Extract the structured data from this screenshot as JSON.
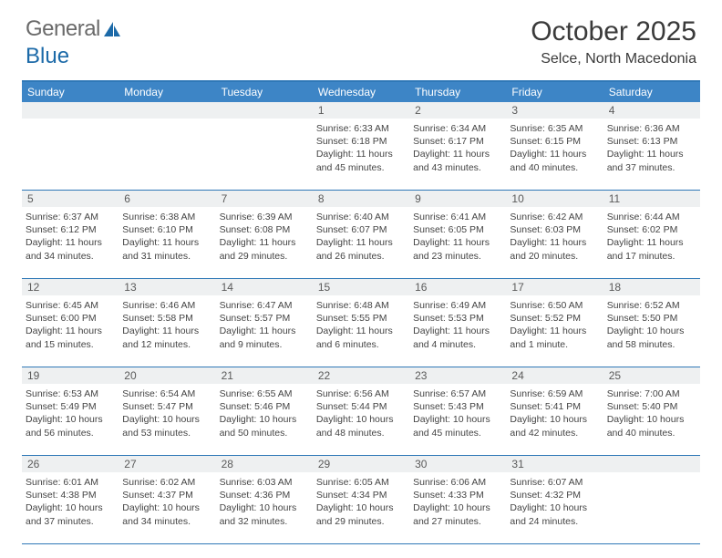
{
  "logo": {
    "text_general": "General",
    "text_blue": "Blue"
  },
  "header": {
    "title": "October 2025",
    "location": "Selce, North Macedonia"
  },
  "colors": {
    "header_bg": "#3d85c6",
    "border": "#2f78b7",
    "daynum_bg": "#eef0f1",
    "logo_gray": "#6a6a6a",
    "logo_blue": "#1c6aa8"
  },
  "day_headers": [
    "Sunday",
    "Monday",
    "Tuesday",
    "Wednesday",
    "Thursday",
    "Friday",
    "Saturday"
  ],
  "weeks": [
    [
      {
        "num": "",
        "sunrise": "",
        "sunset": "",
        "daylight": ""
      },
      {
        "num": "",
        "sunrise": "",
        "sunset": "",
        "daylight": ""
      },
      {
        "num": "",
        "sunrise": "",
        "sunset": "",
        "daylight": ""
      },
      {
        "num": "1",
        "sunrise": "Sunrise: 6:33 AM",
        "sunset": "Sunset: 6:18 PM",
        "daylight": "Daylight: 11 hours and 45 minutes."
      },
      {
        "num": "2",
        "sunrise": "Sunrise: 6:34 AM",
        "sunset": "Sunset: 6:17 PM",
        "daylight": "Daylight: 11 hours and 43 minutes."
      },
      {
        "num": "3",
        "sunrise": "Sunrise: 6:35 AM",
        "sunset": "Sunset: 6:15 PM",
        "daylight": "Daylight: 11 hours and 40 minutes."
      },
      {
        "num": "4",
        "sunrise": "Sunrise: 6:36 AM",
        "sunset": "Sunset: 6:13 PM",
        "daylight": "Daylight: 11 hours and 37 minutes."
      }
    ],
    [
      {
        "num": "5",
        "sunrise": "Sunrise: 6:37 AM",
        "sunset": "Sunset: 6:12 PM",
        "daylight": "Daylight: 11 hours and 34 minutes."
      },
      {
        "num": "6",
        "sunrise": "Sunrise: 6:38 AM",
        "sunset": "Sunset: 6:10 PM",
        "daylight": "Daylight: 11 hours and 31 minutes."
      },
      {
        "num": "7",
        "sunrise": "Sunrise: 6:39 AM",
        "sunset": "Sunset: 6:08 PM",
        "daylight": "Daylight: 11 hours and 29 minutes."
      },
      {
        "num": "8",
        "sunrise": "Sunrise: 6:40 AM",
        "sunset": "Sunset: 6:07 PM",
        "daylight": "Daylight: 11 hours and 26 minutes."
      },
      {
        "num": "9",
        "sunrise": "Sunrise: 6:41 AM",
        "sunset": "Sunset: 6:05 PM",
        "daylight": "Daylight: 11 hours and 23 minutes."
      },
      {
        "num": "10",
        "sunrise": "Sunrise: 6:42 AM",
        "sunset": "Sunset: 6:03 PM",
        "daylight": "Daylight: 11 hours and 20 minutes."
      },
      {
        "num": "11",
        "sunrise": "Sunrise: 6:44 AM",
        "sunset": "Sunset: 6:02 PM",
        "daylight": "Daylight: 11 hours and 17 minutes."
      }
    ],
    [
      {
        "num": "12",
        "sunrise": "Sunrise: 6:45 AM",
        "sunset": "Sunset: 6:00 PM",
        "daylight": "Daylight: 11 hours and 15 minutes."
      },
      {
        "num": "13",
        "sunrise": "Sunrise: 6:46 AM",
        "sunset": "Sunset: 5:58 PM",
        "daylight": "Daylight: 11 hours and 12 minutes."
      },
      {
        "num": "14",
        "sunrise": "Sunrise: 6:47 AM",
        "sunset": "Sunset: 5:57 PM",
        "daylight": "Daylight: 11 hours and 9 minutes."
      },
      {
        "num": "15",
        "sunrise": "Sunrise: 6:48 AM",
        "sunset": "Sunset: 5:55 PM",
        "daylight": "Daylight: 11 hours and 6 minutes."
      },
      {
        "num": "16",
        "sunrise": "Sunrise: 6:49 AM",
        "sunset": "Sunset: 5:53 PM",
        "daylight": "Daylight: 11 hours and 4 minutes."
      },
      {
        "num": "17",
        "sunrise": "Sunrise: 6:50 AM",
        "sunset": "Sunset: 5:52 PM",
        "daylight": "Daylight: 11 hours and 1 minute."
      },
      {
        "num": "18",
        "sunrise": "Sunrise: 6:52 AM",
        "sunset": "Sunset: 5:50 PM",
        "daylight": "Daylight: 10 hours and 58 minutes."
      }
    ],
    [
      {
        "num": "19",
        "sunrise": "Sunrise: 6:53 AM",
        "sunset": "Sunset: 5:49 PM",
        "daylight": "Daylight: 10 hours and 56 minutes."
      },
      {
        "num": "20",
        "sunrise": "Sunrise: 6:54 AM",
        "sunset": "Sunset: 5:47 PM",
        "daylight": "Daylight: 10 hours and 53 minutes."
      },
      {
        "num": "21",
        "sunrise": "Sunrise: 6:55 AM",
        "sunset": "Sunset: 5:46 PM",
        "daylight": "Daylight: 10 hours and 50 minutes."
      },
      {
        "num": "22",
        "sunrise": "Sunrise: 6:56 AM",
        "sunset": "Sunset: 5:44 PM",
        "daylight": "Daylight: 10 hours and 48 minutes."
      },
      {
        "num": "23",
        "sunrise": "Sunrise: 6:57 AM",
        "sunset": "Sunset: 5:43 PM",
        "daylight": "Daylight: 10 hours and 45 minutes."
      },
      {
        "num": "24",
        "sunrise": "Sunrise: 6:59 AM",
        "sunset": "Sunset: 5:41 PM",
        "daylight": "Daylight: 10 hours and 42 minutes."
      },
      {
        "num": "25",
        "sunrise": "Sunrise: 7:00 AM",
        "sunset": "Sunset: 5:40 PM",
        "daylight": "Daylight: 10 hours and 40 minutes."
      }
    ],
    [
      {
        "num": "26",
        "sunrise": "Sunrise: 6:01 AM",
        "sunset": "Sunset: 4:38 PM",
        "daylight": "Daylight: 10 hours and 37 minutes."
      },
      {
        "num": "27",
        "sunrise": "Sunrise: 6:02 AM",
        "sunset": "Sunset: 4:37 PM",
        "daylight": "Daylight: 10 hours and 34 minutes."
      },
      {
        "num": "28",
        "sunrise": "Sunrise: 6:03 AM",
        "sunset": "Sunset: 4:36 PM",
        "daylight": "Daylight: 10 hours and 32 minutes."
      },
      {
        "num": "29",
        "sunrise": "Sunrise: 6:05 AM",
        "sunset": "Sunset: 4:34 PM",
        "daylight": "Daylight: 10 hours and 29 minutes."
      },
      {
        "num": "30",
        "sunrise": "Sunrise: 6:06 AM",
        "sunset": "Sunset: 4:33 PM",
        "daylight": "Daylight: 10 hours and 27 minutes."
      },
      {
        "num": "31",
        "sunrise": "Sunrise: 6:07 AM",
        "sunset": "Sunset: 4:32 PM",
        "daylight": "Daylight: 10 hours and 24 minutes."
      },
      {
        "num": "",
        "sunrise": "",
        "sunset": "",
        "daylight": ""
      }
    ]
  ]
}
